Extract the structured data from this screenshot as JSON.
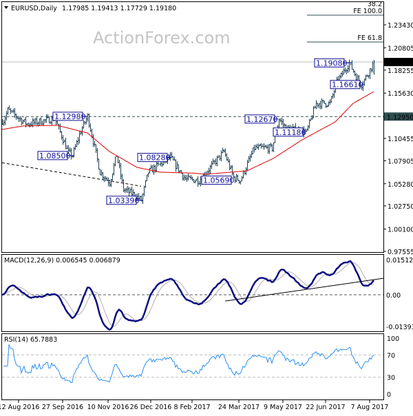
{
  "header": {
    "symbol": "EURUSD,Daily",
    "ohlc": "1.17985 1.19413 1.17729 1.19180"
  },
  "watermark": "ActionForex.com",
  "colors": {
    "bars": "#1b3d52",
    "sma": "#e00000",
    "label": "#0a0a90",
    "macd": "#0a0a80",
    "signal": "#b0b0b0",
    "rsi": "#2b8ff0"
  },
  "chart_data": {
    "type": "line",
    "title": "EURUSD,Daily",
    "price_axis": {
      "ticks": [
        "1.23430",
        "1.20805",
        "1.18255",
        "1.15630",
        "1.10455",
        "1.07905",
        "1.05280",
        "1.02750",
        "1.00100",
        "0.97555"
      ],
      "tick_values": [
        1.2343,
        1.20805,
        1.18255,
        1.1563,
        1.10455,
        1.07905,
        1.0528,
        1.0275,
        1.001,
        0.97555
      ],
      "current": "1.19180",
      "level": "1.12950",
      "ylim": [
        0.97555,
        1.2343
      ]
    },
    "price_path": [
      [
        1,
        1.125
      ],
      [
        4,
        1.1368
      ],
      [
        18,
        1.121
      ],
      [
        38,
        1.1273
      ],
      [
        48,
        1.088
      ],
      [
        51,
        1.085
      ],
      [
        57,
        1.1132
      ],
      [
        62,
        1.1298
      ],
      [
        71,
        1.066
      ],
      [
        78,
        1.0542
      ],
      [
        83,
        1.0857
      ],
      [
        88,
        1.0463
      ],
      [
        96,
        1.04
      ],
      [
        101,
        1.0339
      ],
      [
        106,
        1.066
      ],
      [
        122,
        1.0828
      ],
      [
        133,
        1.0581
      ],
      [
        143,
        1.0566
      ],
      [
        161,
        1.0896
      ],
      [
        168,
        1.0597
      ],
      [
        173,
        1.0569
      ],
      [
        183,
        1.0935
      ],
      [
        196,
        1.0935
      ],
      [
        201,
        1.1267
      ],
      [
        206,
        1.1163
      ],
      [
        221,
        1.1118
      ],
      [
        228,
        1.1446
      ],
      [
        238,
        1.1446
      ],
      [
        243,
        1.1682
      ],
      [
        252,
        1.1908
      ],
      [
        258,
        1.1722
      ],
      [
        261,
        1.1661
      ],
      [
        266,
        1.18
      ],
      [
        270,
        1.1918
      ]
    ],
    "sma_path": [
      [
        0,
        1.1148
      ],
      [
        15,
        1.1187
      ],
      [
        40,
        1.1195
      ],
      [
        62,
        1.1108
      ],
      [
        78,
        1.0896
      ],
      [
        98,
        1.0715
      ],
      [
        115,
        1.066
      ],
      [
        138,
        1.065
      ],
      [
        148,
        1.0636
      ],
      [
        178,
        1.0676
      ],
      [
        197,
        1.0817
      ],
      [
        218,
        1.103
      ],
      [
        242,
        1.1234
      ],
      [
        255,
        1.1446
      ],
      [
        270,
        1.158
      ]
    ],
    "swing_labels": [
      {
        "text": "1.12980",
        "bar": 62,
        "price": 1.1298
      },
      {
        "text": "1.08500",
        "bar": 51,
        "price": 1.085
      },
      {
        "text": "1.03390",
        "bar": 101,
        "price": 1.0339
      },
      {
        "text": "1.08280",
        "bar": 122,
        "price": 1.0828
      },
      {
        "text": "1.05690",
        "bar": 173,
        "price": 1.0569
      },
      {
        "text": "1.12670",
        "bar": 201,
        "price": 1.1267
      },
      {
        "text": "1.11180",
        "bar": 221,
        "price": 1.1118
      },
      {
        "text": "1.19080",
        "bar": 252,
        "price": 1.1908
      },
      {
        "text": "1.16610",
        "bar": 261,
        "price": 1.1661
      }
    ],
    "fib_levels": [
      {
        "label": "38.2",
        "price": 1.26
      },
      {
        "label": "FE 100.0",
        "price": 1.2461
      },
      {
        "label": "FE 61.8",
        "price": 1.2154
      }
    ],
    "trendlines": {
      "price_support": [
        [
          0,
          1.0768
        ],
        [
          101,
          1.05
        ]
      ],
      "macd_support": [
        [
          162,
          -0.0027
        ],
        [
          277,
          0.0071
        ]
      ]
    },
    "macd": {
      "title": "MACD(12,26,9) 0.006545 0.006879",
      "ticks": [
        "0.01512",
        "0.00",
        "-0.013938"
      ],
      "tick_values": [
        0.01512,
        0,
        -0.013938
      ]
    },
    "rsi": {
      "title": "RSI(14) 65.7883",
      "ticks": [
        "100",
        "70",
        "30",
        "0"
      ],
      "tick_values": [
        100,
        70,
        30,
        0
      ]
    },
    "x_ticks": [
      {
        "label": "12 Aug 2016",
        "bar": 12
      },
      {
        "label": "27 Sep 2016",
        "bar": 44
      },
      {
        "label": "10 Nov 2016",
        "bar": 77
      },
      {
        "label": "26 Dec 2016",
        "bar": 108
      },
      {
        "label": "8 Feb 2017",
        "bar": 138
      },
      {
        "label": "24 Mar 2017",
        "bar": 172
      },
      {
        "label": "9 May 2017",
        "bar": 204
      },
      {
        "label": "22 Jun 2017",
        "bar": 235
      },
      {
        "label": "7 Aug 2017",
        "bar": 267
      }
    ]
  }
}
